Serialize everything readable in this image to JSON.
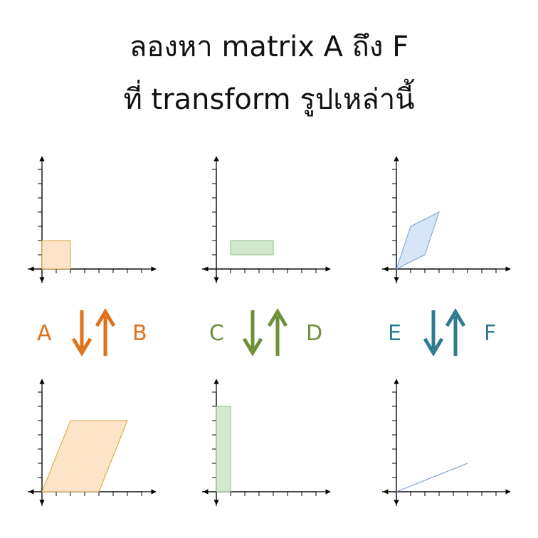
{
  "title": {
    "line1": "ลองหา matrix A ถึง F",
    "line2": "ที่ transform รูปเหล่านี้"
  },
  "colors": {
    "axis": "#000000",
    "orange_fill": "#fde4c8",
    "orange_stroke": "#d9a13a",
    "green_fill": "#d3e8cf",
    "green_stroke": "#8cbf83",
    "blue_fill": "#d6e6f8",
    "blue_stroke": "#7c9fd4",
    "orange_arrow": "#e07019",
    "green_arrow": "#6f8f3a",
    "blue_arrow": "#2e7b90"
  },
  "pairs": [
    {
      "name": "orange",
      "left_label": "A",
      "right_label": "B",
      "top_shape": [
        [
          0,
          0
        ],
        [
          2,
          0
        ],
        [
          2,
          2
        ],
        [
          0,
          2
        ]
      ],
      "bottom_shape": [
        [
          0,
          0
        ],
        [
          4,
          0
        ],
        [
          6,
          5
        ],
        [
          2,
          5
        ]
      ]
    },
    {
      "name": "green",
      "left_label": "C",
      "right_label": "D",
      "top_shape": [
        [
          1,
          1
        ],
        [
          4,
          1
        ],
        [
          4,
          2
        ],
        [
          1,
          2
        ]
      ],
      "bottom_shape": [
        [
          0,
          0
        ],
        [
          1,
          0
        ],
        [
          1,
          6
        ],
        [
          0,
          6
        ]
      ]
    },
    {
      "name": "blue",
      "left_label": "E",
      "right_label": "F",
      "top_shape": [
        [
          0,
          0
        ],
        [
          2,
          1
        ],
        [
          3,
          4
        ],
        [
          1,
          3
        ]
      ],
      "bottom_shape": [
        [
          0,
          0
        ],
        [
          5,
          2
        ]
      ]
    }
  ]
}
